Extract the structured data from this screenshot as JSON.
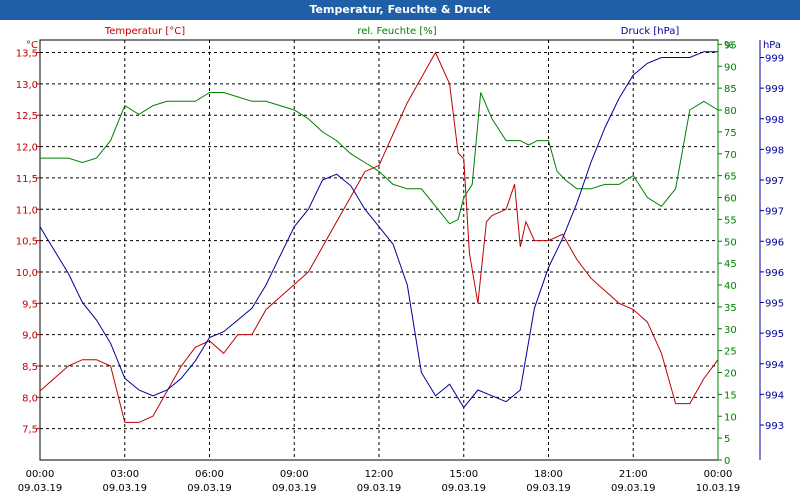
{
  "window": {
    "title": "Temperatur, Feuchte & Druck"
  },
  "colors": {
    "temperature": "#c00000",
    "humidity": "#008000",
    "pressure": "#000099",
    "titlebar": "#1f5fa8",
    "grid": "#000000"
  },
  "chart_data": {
    "type": "line",
    "title": "Temperatur, Feuchte & Druck",
    "grid": true,
    "x_ticks": [
      {
        "time": "00:00",
        "date": "09.03.19"
      },
      {
        "time": "03:00",
        "date": "09.03.19"
      },
      {
        "time": "06:00",
        "date": "09.03.19"
      },
      {
        "time": "09:00",
        "date": "09.03.19"
      },
      {
        "time": "12:00",
        "date": "09.03.19"
      },
      {
        "time": "15:00",
        "date": "09.03.19"
      },
      {
        "time": "18:00",
        "date": "09.03.19"
      },
      {
        "time": "21:00",
        "date": "09.03.19"
      },
      {
        "time": "00:00",
        "date": "10.03.19"
      }
    ],
    "xlim": [
      0,
      24
    ],
    "axes": {
      "temperature": {
        "label": "Temperatur [°C]",
        "unit": "°C",
        "ylim": [
          7.0,
          13.7
        ],
        "ticks": [
          "7,5",
          "8,0",
          "8,5",
          "9,0",
          "9,5",
          "10,0",
          "10,5",
          "11,0",
          "11,5",
          "12,0",
          "12,5",
          "13,0",
          "13,5"
        ]
      },
      "humidity": {
        "label": "rel. Feuchte [%]",
        "unit": "%",
        "ylim": [
          0,
          96
        ],
        "ticks": [
          "0",
          "5",
          "10",
          "15",
          "20",
          "25",
          "30",
          "35",
          "40",
          "45",
          "50",
          "55",
          "60",
          "65",
          "70",
          "75",
          "80",
          "85",
          "90",
          "95"
        ]
      },
      "pressure": {
        "label": "Druck [hPa]",
        "unit": "hPa",
        "ylim": [
          992.6,
          999.8
        ],
        "ticks": [
          "993",
          "994",
          "994",
          "995",
          "995",
          "996",
          "996",
          "997",
          "997",
          "998",
          "998",
          "999",
          "999"
        ]
      }
    },
    "series": [
      {
        "name": "Temperatur [°C]",
        "axis": "temperature",
        "x": [
          0,
          0.5,
          1,
          1.5,
          2,
          2.5,
          3,
          3.5,
          4,
          4.5,
          5,
          5.5,
          6,
          6.5,
          7,
          7.5,
          8,
          8.5,
          9,
          9.5,
          10,
          10.5,
          11,
          11.5,
          12,
          12.5,
          13,
          13.5,
          14,
          14.5,
          14.8,
          15,
          15.2,
          15.5,
          15.8,
          16,
          16.5,
          16.8,
          17,
          17.2,
          17.5,
          18,
          18.5,
          19,
          19.5,
          20,
          20.5,
          21,
          21.5,
          22,
          22.5,
          23,
          23.5,
          24
        ],
        "values": [
          8.1,
          8.3,
          8.5,
          8.6,
          8.6,
          8.5,
          7.6,
          7.6,
          7.7,
          8.1,
          8.5,
          8.8,
          8.9,
          8.7,
          9.0,
          9.0,
          9.4,
          9.6,
          9.8,
          10.0,
          10.4,
          10.8,
          11.2,
          11.6,
          11.7,
          12.2,
          12.7,
          13.1,
          13.5,
          13.0,
          11.9,
          11.8,
          10.3,
          9.5,
          10.8,
          10.9,
          11.0,
          11.4,
          10.4,
          10.8,
          10.5,
          10.5,
          10.6,
          10.2,
          9.9,
          9.7,
          9.5,
          9.4,
          9.2,
          8.7,
          7.9,
          7.9,
          8.3,
          8.6
        ]
      },
      {
        "name": "rel. Feuchte [%]",
        "axis": "humidity",
        "x": [
          0,
          0.5,
          1,
          1.5,
          2,
          2.5,
          3,
          3.5,
          4,
          4.5,
          5,
          5.5,
          6,
          6.5,
          7,
          7.5,
          8,
          8.5,
          9,
          9.5,
          10,
          10.5,
          11,
          11.5,
          12,
          12.5,
          13,
          13.5,
          14,
          14.5,
          14.8,
          15,
          15.3,
          15.6,
          16,
          16.5,
          17,
          17.3,
          17.6,
          18,
          18.3,
          18.6,
          19,
          19.5,
          20,
          20.5,
          21,
          21.5,
          22,
          22.5,
          23,
          23.5,
          24
        ],
        "values": [
          69,
          69,
          69,
          68,
          69,
          73,
          81,
          79,
          81,
          82,
          82,
          82,
          84,
          84,
          83,
          82,
          82,
          81,
          80,
          78,
          75,
          73,
          70,
          68,
          66,
          63,
          62,
          62,
          58,
          54,
          55,
          60,
          63,
          84,
          78,
          73,
          73,
          72,
          73,
          73,
          66,
          64,
          62,
          62,
          63,
          63,
          65,
          60,
          58,
          62,
          80,
          82,
          80
        ]
      },
      {
        "name": "Druck [hPa]",
        "axis": "pressure",
        "x": [
          0,
          0.5,
          1,
          1.5,
          2,
          2.5,
          3,
          3.5,
          4,
          4.5,
          5,
          5.5,
          6,
          6.5,
          7,
          7.5,
          8,
          8.5,
          9,
          9.5,
          10,
          10.5,
          11,
          11.5,
          12,
          12.5,
          13,
          13.5,
          14,
          14.5,
          15,
          15.5,
          16,
          16.5,
          17,
          17.5,
          18,
          18.5,
          19,
          19.5,
          20,
          20.5,
          21,
          21.5,
          22,
          22.5,
          23,
          23.5,
          24
        ],
        "values": [
          996.6,
          996.2,
          995.8,
          995.3,
          995.0,
          994.6,
          994.0,
          993.8,
          993.7,
          993.8,
          994.0,
          994.3,
          994.7,
          994.8,
          995.0,
          995.2,
          995.6,
          996.1,
          996.6,
          996.9,
          997.4,
          997.5,
          997.3,
          996.9,
          996.6,
          996.3,
          995.6,
          994.1,
          993.7,
          993.9,
          993.5,
          993.8,
          993.7,
          993.6,
          993.8,
          995.2,
          995.9,
          996.4,
          997.0,
          997.7,
          998.3,
          998.8,
          999.2,
          999.4,
          999.5,
          999.5,
          999.5,
          999.6,
          999.6
        ]
      }
    ]
  }
}
